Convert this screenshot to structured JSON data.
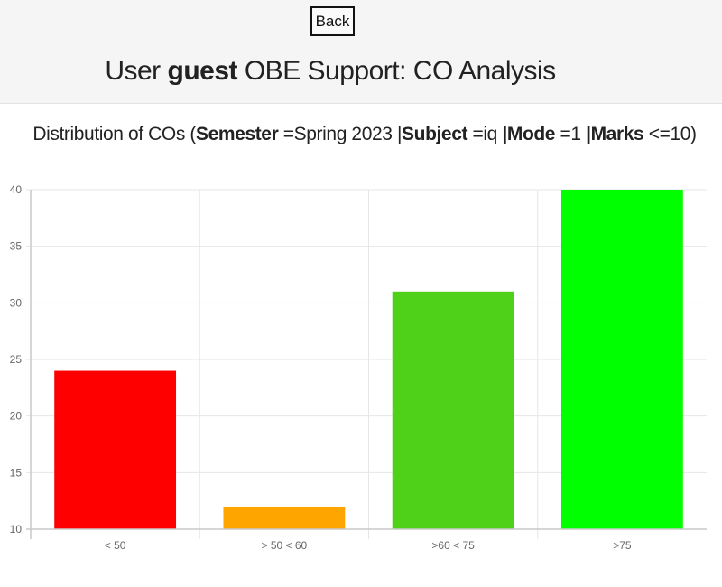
{
  "header": {
    "back_label": "Back",
    "title_prefix": "User ",
    "username": "guest",
    "title_suffix": " OBE Support: CO Analysis"
  },
  "subtitle": {
    "p1": "Distribution of COs (",
    "semester_label": "Semester",
    "p2": " =Spring 2023 |",
    "subject_label": "Subject",
    "p3": " =iq ",
    "sep1": "|",
    "mode_label": "Mode",
    "p4": " =1 ",
    "sep2": "|",
    "marks_label": "Marks",
    "p5": " <=10)"
  },
  "chart_data": {
    "type": "bar",
    "categories": [
      "< 50",
      "> 50 < 60",
      ">60 < 75",
      ">75"
    ],
    "values": [
      24,
      12,
      31,
      40
    ],
    "colors": [
      "#ff0000",
      "#ffa500",
      "#4fd11a",
      "#00ff00"
    ],
    "ylim": [
      10,
      40
    ],
    "yticks": [
      10,
      15,
      20,
      25,
      30,
      35,
      40
    ],
    "grid": true,
    "legend": "none"
  }
}
